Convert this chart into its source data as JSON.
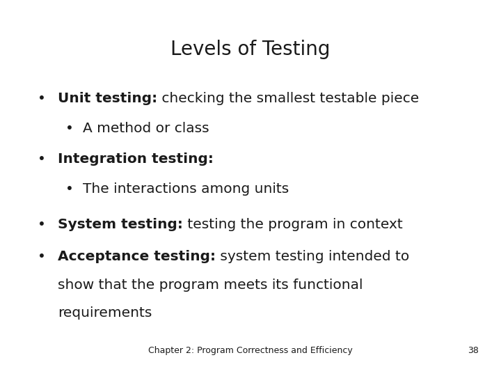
{
  "title": "Levels of Testing",
  "title_fontsize": 20,
  "background_color": "#ffffff",
  "text_color": "#1a1a1a",
  "footer_text": "Chapter 2: Program Correctness and Efficiency",
  "footer_page": "38",
  "footer_fontsize": 9,
  "bullet_fontsize": 14.5,
  "bullet_char": "•",
  "items": [
    {
      "level": 0,
      "bold": "Unit testing:",
      "normal": " checking the smallest testable piece",
      "extra_lines": []
    },
    {
      "level": 1,
      "bold": "",
      "normal": "A method or class",
      "extra_lines": []
    },
    {
      "level": 0,
      "bold": "Integration testing:",
      "normal": "",
      "extra_lines": []
    },
    {
      "level": 1,
      "bold": "",
      "normal": "The interactions among units",
      "extra_lines": []
    },
    {
      "level": 0,
      "bold": "System testing:",
      "normal": " testing the program in context",
      "extra_lines": []
    },
    {
      "level": 0,
      "bold": "Acceptance testing:",
      "normal": " system testing intended to",
      "extra_lines": [
        "show that the program meets its functional",
        "requirements"
      ]
    }
  ]
}
